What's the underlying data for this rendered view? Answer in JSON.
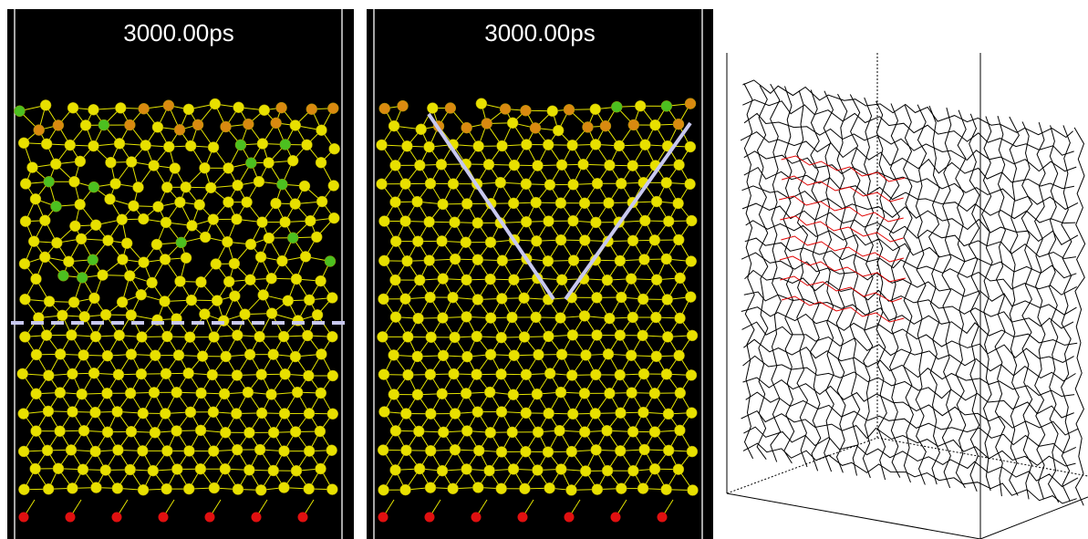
{
  "panels": [
    {
      "time_label": "3000.00ps"
    },
    {
      "time_label": "3000.00ps"
    }
  ]
}
